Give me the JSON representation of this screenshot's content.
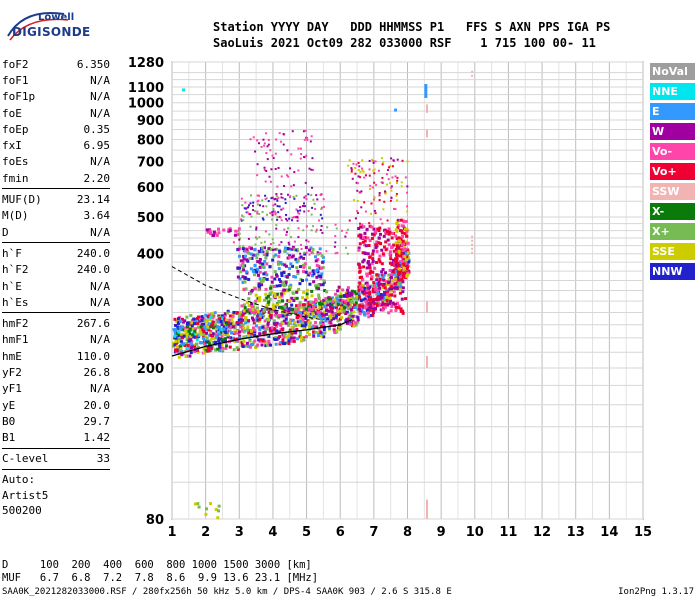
{
  "logo": {
    "line1": "Lowell",
    "line2": "DIGISONDE"
  },
  "header": {
    "line1": "Station YYYY DAY   DDD HHMMSS P1   FFS S AXN PPS IGA PS",
    "line2": "SaoLuis 2021 Oct09 282 033000 RSF    1 715 100 00- 11"
  },
  "params": {
    "group1": [
      {
        "name": "foF2",
        "value": "6.350"
      },
      {
        "name": "foF1",
        "value": "N/A"
      },
      {
        "name": "foF1p",
        "value": "N/A"
      },
      {
        "name": "foE",
        "value": "N/A"
      },
      {
        "name": "foEp",
        "value": "0.35"
      },
      {
        "name": "fxI",
        "value": "6.95"
      },
      {
        "name": "foEs",
        "value": "N/A"
      },
      {
        "name": "fmin",
        "value": "2.20"
      }
    ],
    "group2": [
      {
        "name": "MUF(D)",
        "value": "23.14"
      },
      {
        "name": "M(D)",
        "value": "3.64"
      },
      {
        "name": "D",
        "value": "N/A"
      }
    ],
    "group3": [
      {
        "name": "h`F",
        "value": "240.0"
      },
      {
        "name": "h`F2",
        "value": "240.0"
      },
      {
        "name": "h`E",
        "value": "N/A"
      },
      {
        "name": "h`Es",
        "value": "N/A"
      }
    ],
    "group4": [
      {
        "name": "hmF2",
        "value": "267.6"
      },
      {
        "name": "hmF1",
        "value": "N/A"
      },
      {
        "name": "hmE",
        "value": "110.0"
      },
      {
        "name": "yF2",
        "value": "26.8"
      },
      {
        "name": "yF1",
        "value": "N/A"
      },
      {
        "name": "yE",
        "value": "20.0"
      },
      {
        "name": "B0",
        "value": "29.7"
      },
      {
        "name": "B1",
        "value": "1.42"
      }
    ],
    "group5": [
      {
        "name": "C-level",
        "value": "33"
      }
    ],
    "auto": [
      "Auto:",
      "Artist5",
      "500200"
    ]
  },
  "legend": [
    {
      "label": "NoVal",
      "color": "#9e9e9e"
    },
    {
      "label": "NNE",
      "color": "#00e5ee"
    },
    {
      "label": "E",
      "color": "#3399ff"
    },
    {
      "label": "W",
      "color": "#a000a0"
    },
    {
      "label": "Vo-",
      "color": "#ff44aa"
    },
    {
      "label": "Vo+",
      "color": "#ee0033"
    },
    {
      "label": "SSW",
      "color": "#f2b3b3"
    },
    {
      "label": "X-",
      "color": "#0a7a0a"
    },
    {
      "label": "X+",
      "color": "#77bb55"
    },
    {
      "label": "SSE",
      "color": "#cccc00"
    },
    {
      "label": "NNW",
      "color": "#2222cc"
    }
  ],
  "chart_data": {
    "type": "scatter",
    "title": "",
    "xlabel": "",
    "ylabel": "",
    "xlim": [
      1,
      15
    ],
    "x_ticks": [
      "1",
      "2",
      "3",
      "4",
      "5",
      "6",
      "7",
      "8",
      "9",
      "10",
      "11",
      "12",
      "13",
      "14",
      "15"
    ],
    "ylim": [
      80,
      1280
    ],
    "y_ticks": [
      "80",
      "200",
      "300",
      "400",
      "500",
      "600",
      "700",
      "800",
      "900",
      "1000",
      "1100",
      "1280"
    ],
    "y_scale": "log",
    "grid": true,
    "traces": [
      {
        "name": "F2 trace",
        "x": [
          1.0,
          1.5,
          2.0,
          2.5,
          3.0,
          3.5,
          4.0,
          4.5,
          5.0,
          5.5,
          6.0,
          6.5,
          7.0,
          7.5,
          7.8,
          8.0
        ],
        "y": [
          240,
          245,
          248,
          250,
          253,
          256,
          258,
          262,
          268,
          275,
          285,
          300,
          320,
          350,
          380,
          420
        ]
      }
    ],
    "profile_curve": {
      "x": [
        1.0,
        2.0,
        3.0,
        4.0,
        5.0,
        6.0,
        6.35
      ],
      "y": [
        215,
        228,
        238,
        246,
        252,
        260,
        268
      ]
    },
    "dashed_curve": {
      "x": [
        1.0,
        2.0,
        3.0,
        4.0,
        5.0,
        5.5
      ],
      "y": [
        370,
        330,
        305,
        285,
        272,
        268
      ]
    }
  },
  "footer": {
    "line1": "D     100  200  400  600  800 1000 1500 3000 [km]",
    "line2": "MUF   6.7  6.8  7.2  7.8  8.6  9.9 13.6 23.1 [MHz]",
    "source": "SAA0K_2021282033000.RSF / 280fx256h 50 kHz 5.0 km / DPS-4 SAA0K 903 / 2.6 S 315.8 E",
    "version": "Ion2Png 1.3.17"
  }
}
